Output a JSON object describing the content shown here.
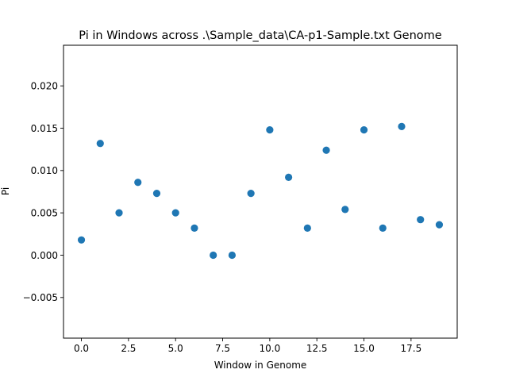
{
  "chart_data": {
    "type": "scatter",
    "title": "Pi in Windows across .\\Sample_data\\CA-p1-Sample.txt Genome",
    "xlabel": "Window in Genome",
    "ylabel": "Pi",
    "xlim": [
      -0.95,
      19.95
    ],
    "ylim": [
      -0.0098,
      0.0248
    ],
    "xticks": [
      0.0,
      2.5,
      5.0,
      7.5,
      10.0,
      12.5,
      15.0,
      17.5
    ],
    "xtick_labels": [
      "0.0",
      "2.5",
      "5.0",
      "7.5",
      "10.0",
      "12.5",
      "15.0",
      "17.5"
    ],
    "yticks": [
      -0.005,
      0.0,
      0.005,
      0.01,
      0.015,
      0.02
    ],
    "ytick_labels": [
      "−0.005",
      "0.000",
      "0.005",
      "0.010",
      "0.015",
      "0.020"
    ],
    "grid": false,
    "marker_color": "#1f77b4",
    "series": [
      {
        "x": [
          0,
          1,
          2,
          3,
          4,
          5,
          6,
          7,
          8,
          9,
          10,
          11,
          12,
          13,
          14,
          15,
          16,
          17,
          18,
          19
        ],
        "y": [
          0.0018,
          0.0132,
          0.005,
          0.0086,
          0.0073,
          0.005,
          0.0032,
          0.0,
          0.0,
          0.0073,
          0.0148,
          0.0092,
          0.0032,
          0.0124,
          0.0054,
          0.0148,
          0.0032,
          0.0152,
          0.0042,
          0.0036
        ]
      }
    ]
  }
}
